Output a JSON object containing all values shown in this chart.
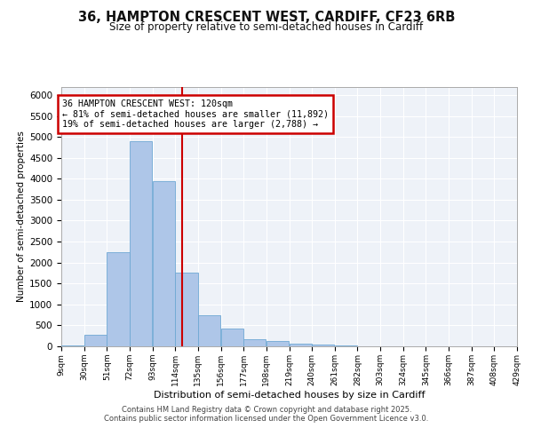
{
  "title_line1": "36, HAMPTON CRESCENT WEST, CARDIFF, CF23 6RB",
  "title_line2": "Size of property relative to semi-detached houses in Cardiff",
  "xlabel": "Distribution of semi-detached houses by size in Cardiff",
  "ylabel": "Number of semi-detached properties",
  "annotation_title": "36 HAMPTON CRESCENT WEST: 120sqm",
  "annotation_line2": "← 81% of semi-detached houses are smaller (11,892)",
  "annotation_line3": "19% of semi-detached houses are larger (2,788) →",
  "property_size": 120,
  "footer_line1": "Contains HM Land Registry data © Crown copyright and database right 2025.",
  "footer_line2": "Contains public sector information licensed under the Open Government Licence v3.0.",
  "bar_color": "#aec6e8",
  "bar_edge_color": "#6fa8d4",
  "vline_color": "#cc0000",
  "annotation_box_color": "#cc0000",
  "background_color": "#eef2f8",
  "grid_color": "#ffffff",
  "bin_edges": [
    9,
    30,
    51,
    72,
    93,
    114,
    135,
    156,
    177,
    198,
    219,
    240,
    261,
    282,
    303,
    324,
    345,
    366,
    387,
    408,
    429
  ],
  "bin_labels": [
    "9sqm",
    "30sqm",
    "51sqm",
    "72sqm",
    "93sqm",
    "114sqm",
    "135sqm",
    "156sqm",
    "177sqm",
    "198sqm",
    "219sqm",
    "240sqm",
    "261sqm",
    "282sqm",
    "303sqm",
    "324sqm",
    "345sqm",
    "366sqm",
    "387sqm",
    "408sqm",
    "429sqm"
  ],
  "bar_heights": [
    25,
    280,
    2250,
    4900,
    3950,
    1750,
    750,
    430,
    170,
    120,
    70,
    40,
    20,
    10,
    5,
    5,
    2,
    1,
    0,
    0
  ],
  "ylim": [
    0,
    6200
  ],
  "yticks": [
    0,
    500,
    1000,
    1500,
    2000,
    2500,
    3000,
    3500,
    4000,
    4500,
    5000,
    5500,
    6000
  ]
}
